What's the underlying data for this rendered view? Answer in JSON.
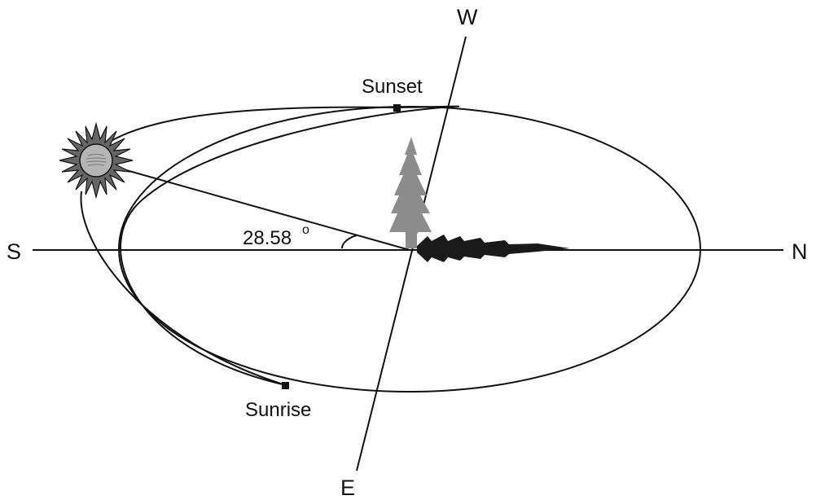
{
  "directions": {
    "south": "S",
    "north": "N",
    "west": "W",
    "east": "E"
  },
  "points": {
    "sunset": "Sunset",
    "sunrise": "Sunrise"
  },
  "angle": {
    "value": "28.58",
    "unit": "o"
  },
  "icons": {
    "sun": "sun-icon",
    "tree": "tree-icon",
    "shadow": "tree-shadow-icon"
  },
  "colors": {
    "line": "#111111",
    "sun_fill": "#a8a8a8",
    "tree": "#8c8c8c",
    "shadow": "#1a1a1a"
  }
}
